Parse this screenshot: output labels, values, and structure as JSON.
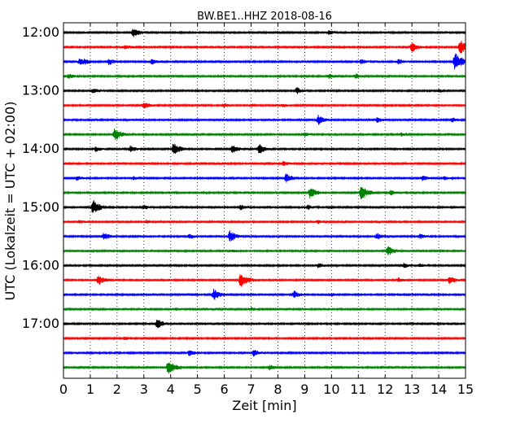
{
  "chart_data": {
    "type": "line",
    "title": "BW.BE1..HHZ 2018-08-16",
    "xlabel": "Zeit  [min]",
    "ylabel": "UTC (Lokalzeit = UTC + 02:00)",
    "xlim": [
      0,
      15
    ],
    "xticks": [
      0,
      1,
      2,
      3,
      4,
      5,
      6,
      7,
      8,
      9,
      10,
      11,
      12,
      13,
      14,
      15
    ],
    "ytick_labels": [
      "12:00",
      "13:00",
      "14:00",
      "15:00",
      "16:00",
      "17:00"
    ],
    "grid": "vertical dotted",
    "series_colors": [
      "#000000",
      "#ff0000",
      "#0000ff",
      "#008000"
    ],
    "traces": [
      {
        "start": "12:00",
        "color": "#000000",
        "events": [
          [
            2.6,
            6
          ],
          [
            9.9,
            3
          ]
        ]
      },
      {
        "start": "12:15",
        "color": "#ff0000",
        "events": [
          [
            2.3,
            3
          ],
          [
            13.0,
            6
          ],
          [
            14.8,
            9
          ]
        ]
      },
      {
        "start": "12:30",
        "color": "#0000ff",
        "events": [
          [
            0.6,
            4
          ],
          [
            0.8,
            3
          ],
          [
            1.7,
            4
          ],
          [
            3.3,
            3
          ],
          [
            11.1,
            3
          ],
          [
            12.5,
            3
          ],
          [
            14.6,
            11
          ]
        ]
      },
      {
        "start": "12:45",
        "color": "#008000",
        "events": [
          [
            0.2,
            3
          ],
          [
            9.9,
            3
          ],
          [
            10.9,
            3
          ]
        ]
      },
      {
        "start": "13:00",
        "color": "#000000",
        "events": [
          [
            1.1,
            3
          ],
          [
            8.7,
            4
          ],
          [
            14.0,
            2
          ]
        ]
      },
      {
        "start": "13:15",
        "color": "#ff0000",
        "events": [
          [
            3.0,
            4
          ],
          [
            6.0,
            2
          ],
          [
            8.2,
            2
          ]
        ]
      },
      {
        "start": "13:30",
        "color": "#0000ff",
        "events": [
          [
            9.5,
            6
          ],
          [
            11.7,
            3
          ],
          [
            14.5,
            3
          ]
        ]
      },
      {
        "start": "13:45",
        "color": "#008000",
        "events": [
          [
            1.9,
            8
          ],
          [
            9.0,
            2
          ],
          [
            12.6,
            2
          ]
        ]
      },
      {
        "start": "14:00",
        "color": "#000000",
        "events": [
          [
            1.2,
            3
          ],
          [
            2.5,
            4
          ],
          [
            4.1,
            8
          ],
          [
            6.3,
            5
          ],
          [
            7.3,
            6
          ]
        ]
      },
      {
        "start": "14:15",
        "color": "#ff0000",
        "events": [
          [
            8.2,
            3
          ],
          [
            10.3,
            2
          ]
        ]
      },
      {
        "start": "14:30",
        "color": "#0000ff",
        "events": [
          [
            0.5,
            3
          ],
          [
            2.6,
            2
          ],
          [
            8.3,
            6
          ],
          [
            13.4,
            3
          ],
          [
            14.2,
            2
          ]
        ]
      },
      {
        "start": "14:45",
        "color": "#008000",
        "events": [
          [
            9.2,
            7
          ],
          [
            11.1,
            9
          ],
          [
            12.2,
            3
          ]
        ]
      },
      {
        "start": "15:00",
        "color": "#000000",
        "events": [
          [
            1.1,
            9
          ],
          [
            3.0,
            3
          ],
          [
            6.6,
            3
          ],
          [
            9.1,
            3
          ]
        ]
      },
      {
        "start": "15:15",
        "color": "#ff0000",
        "events": [
          [
            0.6,
            2
          ],
          [
            3.1,
            2
          ],
          [
            9.5,
            2
          ]
        ]
      },
      {
        "start": "15:30",
        "color": "#0000ff",
        "events": [
          [
            1.5,
            5
          ],
          [
            4.7,
            3
          ],
          [
            6.2,
            7
          ],
          [
            11.7,
            4
          ],
          [
            13.3,
            3
          ]
        ]
      },
      {
        "start": "15:45",
        "color": "#008000",
        "events": [
          [
            6.3,
            2
          ],
          [
            12.1,
            6
          ]
        ]
      },
      {
        "start": "16:00",
        "color": "#000000",
        "events": [
          [
            9.5,
            3
          ],
          [
            12.7,
            3
          ],
          [
            13.3,
            2
          ]
        ]
      },
      {
        "start": "16:15",
        "color": "#ff0000",
        "events": [
          [
            1.3,
            6
          ],
          [
            6.6,
            9
          ],
          [
            12.5,
            3
          ],
          [
            14.4,
            5
          ]
        ]
      },
      {
        "start": "16:30",
        "color": "#0000ff",
        "events": [
          [
            5.6,
            7
          ],
          [
            8.6,
            5
          ],
          [
            10.0,
            2
          ]
        ]
      },
      {
        "start": "16:45",
        "color": "#008000",
        "events": [
          [
            7.0,
            2
          ]
        ]
      },
      {
        "start": "17:00",
        "color": "#000000",
        "events": [
          [
            3.5,
            6
          ]
        ]
      },
      {
        "start": "17:15",
        "color": "#ff0000",
        "events": [
          [
            2.3,
            2
          ]
        ]
      },
      {
        "start": "17:30",
        "color": "#0000ff",
        "events": [
          [
            4.7,
            4
          ],
          [
            7.1,
            4
          ]
        ]
      },
      {
        "start": "17:45",
        "color": "#008000",
        "events": [
          [
            3.9,
            9
          ],
          [
            7.7,
            3
          ]
        ]
      }
    ]
  }
}
